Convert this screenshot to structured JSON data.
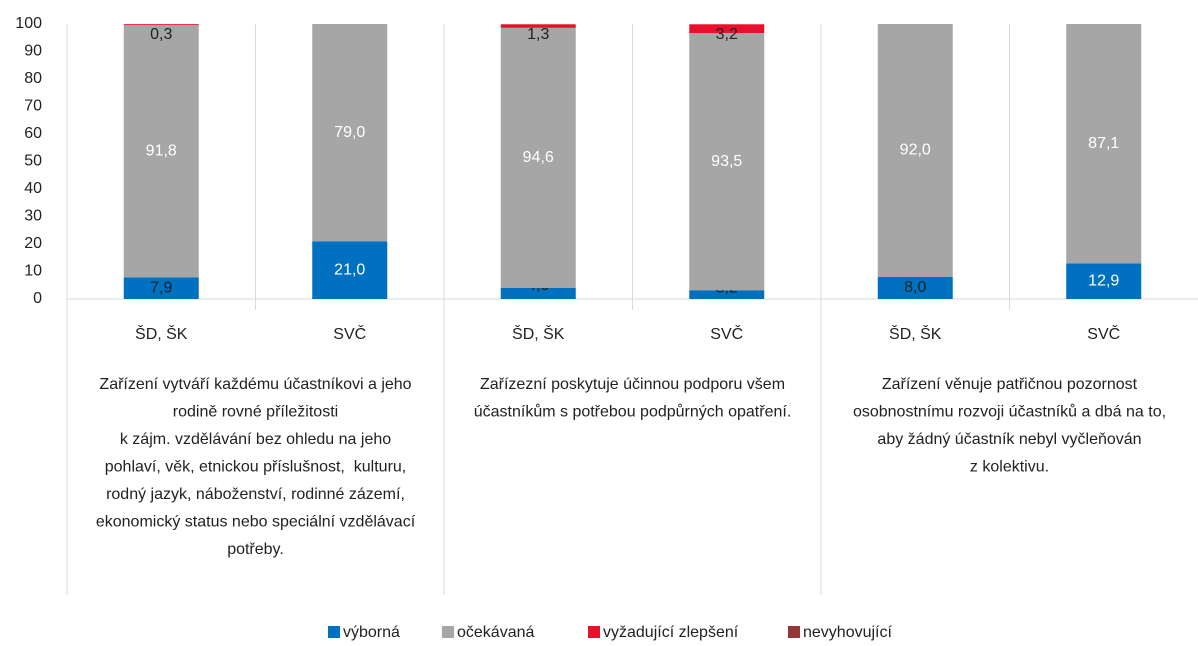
{
  "chart_data": {
    "type": "stacked_bar",
    "categories": [
      "ŠD, ŠK",
      "SVČ",
      "ŠD, ŠK",
      "SVČ",
      "ŠD, ŠK",
      "SVČ"
    ],
    "groups": [
      {
        "lines": [
          "Zařízení vytváří každému účastníkovi a jeho",
          "rodině rovné příležitosti",
          "k zájm. vzdělávání bez ohledu na jeho",
          "pohlaví, věk, etnickou příslušnost,  kulturu,",
          "rodný jazyk, náboženství, rodinné zázemí,",
          "ekonomický status nebo speciální vzdělávací",
          "potřeby."
        ]
      },
      {
        "lines": [
          "Zařízezní poskytuje účinnou podporu všem",
          "účastníkům s potřebou podpůrných opatření."
        ]
      },
      {
        "lines": [
          "Zařízení věnuje patřičnou pozornost",
          "osobnostnímu rozvoji účastníků a dbá na to,",
          "aby žádný účastník nebyl vyčleňován",
          "z kolektivu."
        ]
      }
    ],
    "series": [
      {
        "name": "výborná",
        "color": "#0070c0",
        "values": [
          7.9,
          21.0,
          4.0,
          3.2,
          8.0,
          12.9
        ],
        "value_labels": [
          "7,9",
          "21,0",
          "4,0",
          "3,2",
          "8,0",
          "12,9"
        ]
      },
      {
        "name": "očekávaná",
        "color": "#a6a6a6",
        "values": [
          91.8,
          79.0,
          94.6,
          93.5,
          92.0,
          87.1
        ],
        "value_labels": [
          "91,8",
          "79,0",
          "94,6",
          "93,5",
          "92,0",
          "87,1"
        ]
      },
      {
        "name": "vyžadující zlepšení",
        "color": "#e8112d",
        "values": [
          0.3,
          0,
          1.3,
          3.2,
          0,
          0
        ],
        "value_labels": [
          "0,3",
          null,
          "1,3",
          "3,2",
          null,
          null
        ]
      },
      {
        "name": "nevyhovující",
        "color": "#953735",
        "values": [
          0,
          0,
          0,
          0,
          0,
          0
        ],
        "value_labels": [
          null,
          null,
          null,
          null,
          null,
          null
        ]
      }
    ],
    "ylim": [
      0,
      100
    ],
    "yticks": [
      0,
      10,
      20,
      30,
      40,
      50,
      60,
      70,
      80,
      90,
      100
    ],
    "legend": "bottom"
  }
}
